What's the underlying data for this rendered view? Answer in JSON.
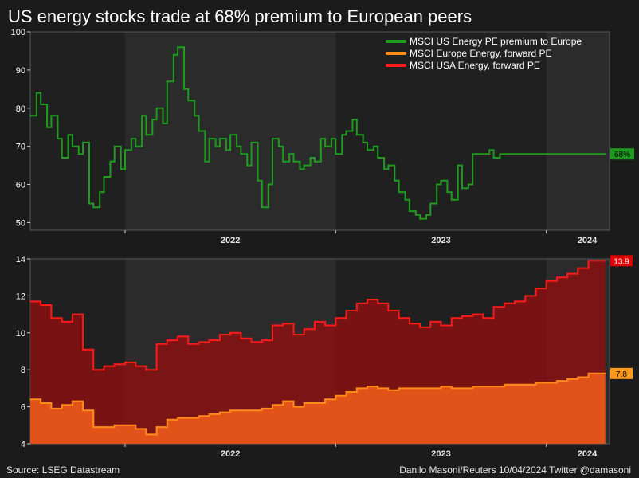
{
  "title": "US energy stocks trade at 68% premium to European peers",
  "source": "Source: LSEG Datastream",
  "credit": "Danilo Masoni/Reuters 10/04/2024 Twitter @damasoni",
  "colors": {
    "background": "#1b1b1b",
    "plot_bg": "#202020",
    "shade": "#2b2b2b",
    "green": "#1f9c1f",
    "red_line": "#ff1a1a",
    "red_fill": "#8a1212",
    "orange_line": "#ff8c1a",
    "orange_fill": "#e8561a"
  },
  "chart_data": [
    {
      "type": "line",
      "title": "",
      "ylim": [
        48,
        100
      ],
      "yticks": [
        50,
        60,
        70,
        80,
        90,
        100
      ],
      "xlim": [
        2021.55,
        2024.3
      ],
      "xticks": [
        {
          "label": "2022",
          "x": 2022.0
        },
        {
          "label": "2023",
          "x": 2023.0
        },
        {
          "label": "2024",
          "x": 2024.0
        }
      ],
      "shaded_years": [
        [
          2022.0,
          2023.0
        ],
        [
          2024.0,
          2024.3
        ]
      ],
      "legend": [
        {
          "name": "MSCI US Energy PE premium to Europe",
          "color": "#1f9c1f"
        },
        {
          "name": "MSCI Europe Energy, forward PE",
          "color": "#ff8c1a"
        },
        {
          "name": "MSCI USA Energy, forward PE",
          "color": "#ff1a1a"
        }
      ],
      "end_label": "68%",
      "series": [
        {
          "name": "MSCI US Energy PE premium to Europe",
          "x": [
            2021.55,
            2021.58,
            2021.6,
            2021.63,
            2021.65,
            2021.68,
            2021.7,
            2021.73,
            2021.75,
            2021.78,
            2021.8,
            2021.83,
            2021.85,
            2021.88,
            2021.9,
            2021.93,
            2021.95,
            2021.98,
            2022.0,
            2022.03,
            2022.05,
            2022.08,
            2022.1,
            2022.13,
            2022.15,
            2022.18,
            2022.2,
            2022.23,
            2022.25,
            2022.28,
            2022.3,
            2022.33,
            2022.35,
            2022.38,
            2022.4,
            2022.43,
            2022.45,
            2022.48,
            2022.5,
            2022.53,
            2022.55,
            2022.58,
            2022.6,
            2022.63,
            2022.65,
            2022.68,
            2022.7,
            2022.73,
            2022.75,
            2022.78,
            2022.8,
            2022.83,
            2022.85,
            2022.88,
            2022.9,
            2022.93,
            2022.95,
            2022.98,
            2023.0,
            2023.03,
            2023.05,
            2023.08,
            2023.1,
            2023.13,
            2023.15,
            2023.18,
            2023.2,
            2023.23,
            2023.25,
            2023.28,
            2023.3,
            2023.33,
            2023.35,
            2023.38,
            2023.4,
            2023.43,
            2023.45,
            2023.48,
            2023.5,
            2023.53,
            2023.55,
            2023.58,
            2023.6,
            2023.63,
            2023.65,
            2023.68,
            2023.7,
            2023.73,
            2023.75,
            2023.78,
            2023.8,
            2023.83,
            2023.85,
            2023.88,
            2023.9,
            2023.93,
            2023.95,
            2023.98,
            2024.0,
            2024.03,
            2024.05,
            2024.08,
            2024.1,
            2024.13,
            2024.15,
            2024.18,
            2024.2,
            2024.23,
            2024.25,
            2024.28
          ],
          "values": [
            78,
            84,
            81,
            75,
            78,
            72,
            67,
            73,
            70,
            68,
            71,
            55,
            54,
            58,
            62,
            66,
            70,
            64,
            69,
            72,
            70,
            78,
            73,
            77,
            80,
            76,
            87,
            94,
            96,
            85,
            82,
            78,
            74,
            66,
            72,
            70,
            72,
            69,
            73,
            70,
            68,
            65,
            71,
            61,
            54,
            60,
            72,
            70,
            66,
            68,
            66,
            64,
            65,
            67,
            66,
            72,
            70,
            72,
            68,
            73,
            74,
            77,
            73,
            71,
            69,
            70,
            67,
            64,
            65,
            61,
            58,
            56,
            53,
            52,
            51,
            52,
            55,
            60,
            61,
            58,
            56,
            65,
            59,
            60,
            68,
            68,
            68,
            69,
            67,
            68,
            68,
            68,
            68,
            68,
            68,
            68,
            68,
            68,
            68,
            68,
            68,
            68,
            68,
            68,
            68,
            68,
            68,
            68,
            68,
            68
          ]
        }
      ]
    },
    {
      "type": "area",
      "title": "",
      "ylim": [
        4,
        14
      ],
      "yticks": [
        4,
        6,
        8,
        10,
        12,
        14
      ],
      "xlim": [
        2021.55,
        2024.3
      ],
      "xticks": [
        {
          "label": "2022",
          "x": 2022.0
        },
        {
          "label": "2023",
          "x": 2023.0
        },
        {
          "label": "2024",
          "x": 2024.0
        }
      ],
      "shaded_years": [
        [
          2022.0,
          2023.0
        ],
        [
          2024.0,
          2024.3
        ]
      ],
      "end_labels": [
        "13.9",
        "7.8"
      ],
      "series": [
        {
          "name": "MSCI USA Energy, forward PE",
          "x": [
            2021.55,
            2021.6,
            2021.65,
            2021.7,
            2021.75,
            2021.8,
            2021.85,
            2021.9,
            2021.95,
            2022.0,
            2022.05,
            2022.1,
            2022.15,
            2022.2,
            2022.25,
            2022.3,
            2022.35,
            2022.4,
            2022.45,
            2022.5,
            2022.55,
            2022.6,
            2022.65,
            2022.7,
            2022.75,
            2022.8,
            2022.85,
            2022.9,
            2022.95,
            2023.0,
            2023.05,
            2023.1,
            2023.15,
            2023.2,
            2023.25,
            2023.3,
            2023.35,
            2023.4,
            2023.45,
            2023.5,
            2023.55,
            2023.6,
            2023.65,
            2023.7,
            2023.75,
            2023.8,
            2023.85,
            2023.9,
            2023.95,
            2024.0,
            2024.05,
            2024.1,
            2024.15,
            2024.2,
            2024.25,
            2024.28
          ],
          "values": [
            11.7,
            11.5,
            10.8,
            10.6,
            11.0,
            9.1,
            8.0,
            8.2,
            8.3,
            8.4,
            8.2,
            8.0,
            9.4,
            9.6,
            9.8,
            9.4,
            9.5,
            9.6,
            9.9,
            10.0,
            9.7,
            9.5,
            9.6,
            10.4,
            10.5,
            9.9,
            10.2,
            10.6,
            10.4,
            10.8,
            11.2,
            11.6,
            11.8,
            11.6,
            11.2,
            10.8,
            10.5,
            10.3,
            10.6,
            10.4,
            10.8,
            10.9,
            11.0,
            10.8,
            11.4,
            11.6,
            11.7,
            12.0,
            12.4,
            12.8,
            13.0,
            13.2,
            13.5,
            13.9,
            13.9,
            13.9
          ]
        },
        {
          "name": "MSCI Europe Energy, forward PE",
          "x": [
            2021.55,
            2021.6,
            2021.65,
            2021.7,
            2021.75,
            2021.8,
            2021.85,
            2021.9,
            2021.95,
            2022.0,
            2022.05,
            2022.1,
            2022.15,
            2022.2,
            2022.25,
            2022.3,
            2022.35,
            2022.4,
            2022.45,
            2022.5,
            2022.55,
            2022.6,
            2022.65,
            2022.7,
            2022.75,
            2022.8,
            2022.85,
            2022.9,
            2022.95,
            2023.0,
            2023.05,
            2023.1,
            2023.15,
            2023.2,
            2023.25,
            2023.3,
            2023.35,
            2023.4,
            2023.45,
            2023.5,
            2023.55,
            2023.6,
            2023.65,
            2023.7,
            2023.75,
            2023.8,
            2023.85,
            2023.9,
            2023.95,
            2024.0,
            2024.05,
            2024.1,
            2024.15,
            2024.2,
            2024.25,
            2024.28
          ],
          "values": [
            6.4,
            6.2,
            5.9,
            6.1,
            6.3,
            5.8,
            4.9,
            4.9,
            5.0,
            5.0,
            4.8,
            4.5,
            4.9,
            5.3,
            5.4,
            5.4,
            5.5,
            5.6,
            5.7,
            5.8,
            5.8,
            5.8,
            5.9,
            6.1,
            6.3,
            6.0,
            6.2,
            6.2,
            6.4,
            6.6,
            6.8,
            7.0,
            7.1,
            7.0,
            6.9,
            7.0,
            7.0,
            7.0,
            7.0,
            7.1,
            7.0,
            7.0,
            7.1,
            7.1,
            7.1,
            7.2,
            7.2,
            7.2,
            7.3,
            7.3,
            7.4,
            7.5,
            7.6,
            7.8,
            7.8,
            7.8
          ]
        }
      ]
    }
  ]
}
